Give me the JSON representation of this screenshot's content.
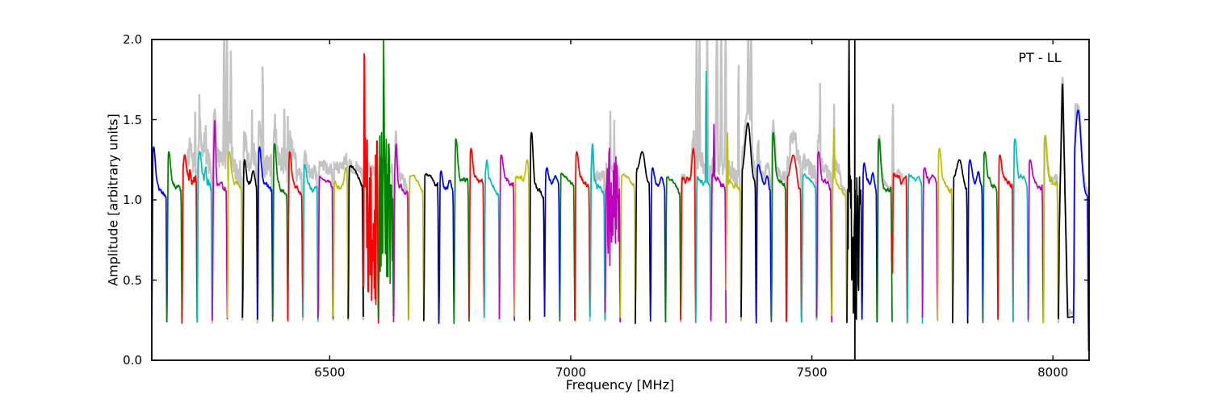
{
  "figure": {
    "annotation": "PT - LL",
    "background": "#ffffff",
    "frame_color": "#000000"
  },
  "chart_data": {
    "type": "line",
    "title": "",
    "xlabel": "Frequency [MHz]",
    "ylabel": "Amplitude [arbitrary units]",
    "annotation": "PT - LL",
    "xlim": [
      6131,
      8075
    ],
    "ylim": [
      0.0,
      2.0
    ],
    "xticks": [
      6500,
      7000,
      7500,
      8000
    ],
    "yticks": [
      0.0,
      0.5,
      1.0,
      1.5,
      2.0
    ],
    "grid": false,
    "legend": "none",
    "description": "Bandpass amplitude spectra of 62 contiguous sub-bands (~31.3 MHz each) from 6131 to 8074 MHz; colors cycle blue,green,red,cyan,magenta,yellow,black; light-gray underlying curves show the same spectra before flagging with strong RFI spikes (clipped at 2.0); typical bandpass plateau ~1.15, band-edge minima ~0.25",
    "palette": {
      "b": "#0000ff",
      "g": "#008000",
      "r": "#ff0000",
      "c": "#00bfbf",
      "m": "#bf00bf",
      "y": "#bfbf00",
      "k": "#000000",
      "gray": "#c4c4c4"
    },
    "band_start": 6131,
    "band_width": 31.34,
    "plateau": 1.15,
    "edge_min": 0.25,
    "subbands": [
      {
        "c": "b",
        "p": 1.33,
        "s": "L"
      },
      {
        "c": "g",
        "p": 1.3,
        "s": "L"
      },
      {
        "c": "r",
        "p": 1.28,
        "s": "J"
      },
      {
        "c": "c",
        "p": 1.3,
        "s": "J"
      },
      {
        "c": "m",
        "p": 1.5,
        "s": "P"
      },
      {
        "c": "y",
        "p": 1.3,
        "s": "L"
      },
      {
        "c": "k",
        "p": 1.25,
        "s": "D"
      },
      {
        "c": "b",
        "p": 1.33,
        "s": "L"
      },
      {
        "c": "g",
        "p": 1.35,
        "s": "L"
      },
      {
        "c": "r",
        "p": 1.3,
        "s": "L"
      },
      {
        "c": "c",
        "p": 1.22,
        "s": "L"
      },
      {
        "c": "m",
        "p": 1.18,
        "s": "F"
      },
      {
        "c": "y",
        "p": 1.2,
        "s": "R"
      },
      {
        "c": "k",
        "p": 1.25,
        "s": "F"
      },
      {
        "c": "r",
        "p": 1.4,
        "s": "M",
        "mess": [
          0.25,
          1.4
        ],
        "spike": [
          6572,
          2.05,
          1.1
        ]
      },
      {
        "c": "g",
        "p": 1.45,
        "s": "M",
        "mess": [
          0.3,
          1.45
        ],
        "spike": [
          6612,
          2.05,
          1.1
        ]
      },
      {
        "c": "m",
        "p": 1.35,
        "s": "P"
      },
      {
        "c": "y",
        "p": 1.18,
        "s": "F"
      },
      {
        "c": "k",
        "p": 1.18,
        "s": "F"
      },
      {
        "c": "b",
        "p": 1.18,
        "s": "D"
      },
      {
        "c": "g",
        "p": 1.38,
        "s": "L"
      },
      {
        "c": "r",
        "p": 1.32,
        "s": "L"
      },
      {
        "c": "c",
        "p": 1.25,
        "s": "P"
      },
      {
        "c": "m",
        "p": 1.28,
        "s": "L"
      },
      {
        "c": "y",
        "p": 1.25,
        "s": "R"
      },
      {
        "c": "k",
        "p": 1.42,
        "s": "L"
      },
      {
        "c": "b",
        "p": 1.2,
        "s": "D"
      },
      {
        "c": "g",
        "p": 1.17,
        "s": "F"
      },
      {
        "c": "r",
        "p": 1.3,
        "s": "L"
      },
      {
        "c": "c",
        "p": 1.35,
        "s": "P"
      },
      {
        "c": "m",
        "p": 1.35,
        "s": "M",
        "mess": [
          0.3,
          1.35
        ],
        "spike": [
          7068,
          2.05,
          1.1
        ]
      },
      {
        "c": "y",
        "p": 1.2,
        "s": "F"
      },
      {
        "c": "k",
        "p": 1.3,
        "s": "C"
      },
      {
        "c": "b",
        "p": 1.2,
        "s": "D"
      },
      {
        "c": "g",
        "p": 1.17,
        "s": "F"
      },
      {
        "c": "r",
        "p": 1.32,
        "s": "R"
      },
      {
        "c": "c",
        "p": 1.15,
        "s": "S",
        "spike": [
          7281,
          1.81,
          1.6
        ]
      },
      {
        "c": "m",
        "p": 1.25,
        "s": "S",
        "spike": [
          7297,
          1.47,
          1.6
        ]
      },
      {
        "c": "y",
        "p": 1.2,
        "s": "S",
        "spike": [
          7325,
          1.42,
          1.6
        ]
      },
      {
        "c": "k",
        "p": 1.48,
        "s": "C"
      },
      {
        "c": "b",
        "p": 1.22,
        "s": "D"
      },
      {
        "c": "g",
        "p": 1.42,
        "s": "L"
      },
      {
        "c": "r",
        "p": 1.28,
        "s": "C"
      },
      {
        "c": "c",
        "p": 1.15,
        "s": "F"
      },
      {
        "c": "m",
        "p": 1.3,
        "s": "L"
      },
      {
        "c": "y",
        "p": 1.25,
        "s": "S",
        "spike": [
          7546,
          1.45,
          1.6
        ]
      },
      {
        "c": "k",
        "p": 1.2,
        "s": "M",
        "mess": [
          0.12,
          1.2
        ],
        "spike": [
          7577,
          2.05,
          1.0
        ],
        "vline": 7589
      },
      {
        "c": "b",
        "p": 1.23,
        "s": "D"
      },
      {
        "c": "g",
        "p": 1.38,
        "s": "L"
      },
      {
        "c": "r",
        "p": 1.1,
        "s": "S",
        "spike": [
          7664,
          1.55,
          2.0
        ]
      },
      {
        "c": "c",
        "p": 1.15,
        "s": "F"
      },
      {
        "c": "m",
        "p": 1.2,
        "s": "D"
      },
      {
        "c": "y",
        "p": 1.32,
        "s": "L"
      },
      {
        "c": "k",
        "p": 1.25,
        "s": "C"
      },
      {
        "c": "b",
        "p": 1.25,
        "s": "D"
      },
      {
        "c": "g",
        "p": 1.3,
        "s": "L"
      },
      {
        "c": "r",
        "p": 1.28,
        "s": "L"
      },
      {
        "c": "c",
        "p": 1.38,
        "s": "L"
      },
      {
        "c": "m",
        "p": 1.25,
        "s": "L"
      },
      {
        "c": "y",
        "p": 1.4,
        "s": "L"
      },
      {
        "c": "k",
        "p": 1.77,
        "s": "T"
      },
      {
        "c": "b",
        "p": 1.56,
        "s": "X"
      }
    ],
    "gray_spikes": [
      [
        6221,
        1.55,
        1.2
      ],
      [
        6230,
        1.67,
        1.2
      ],
      [
        6281,
        2.05,
        1.6
      ],
      [
        6287,
        2.05,
        1.4
      ],
      [
        6295,
        1.93,
        1.4
      ],
      [
        6339,
        1.56,
        1.2
      ],
      [
        6361,
        1.85,
        1.3
      ],
      [
        6406,
        1.6,
        1.2
      ],
      [
        6413,
        1.52,
        1.0
      ],
      [
        7082,
        1.55,
        1.2
      ],
      [
        7090,
        1.5,
        1.0
      ],
      [
        7261,
        2.05,
        1.6
      ],
      [
        7267,
        2.05,
        1.2
      ],
      [
        7283,
        2.05,
        1.6
      ],
      [
        7303,
        2.05,
        2.2
      ],
      [
        7312,
        2.05,
        1.6
      ],
      [
        7321,
        2.05,
        1.6
      ],
      [
        7348,
        1.92,
        1.0
      ],
      [
        7368,
        2.05,
        2.0
      ],
      [
        7374,
        2.05,
        1.8
      ],
      [
        7517,
        1.74,
        1.1
      ],
      [
        7546,
        1.6,
        1.1
      ],
      [
        7668,
        1.62,
        1.3
      ],
      [
        8019,
        1.8,
        1.2
      ],
      [
        8047,
        1.63,
        1.2
      ]
    ],
    "gray_excess_regions": [
      [
        6205,
        6430,
        0.2
      ],
      [
        6430,
        6545,
        0.1
      ],
      [
        6555,
        6660,
        0.1
      ],
      [
        7050,
        7100,
        0.08
      ],
      [
        7250,
        7390,
        0.15
      ],
      [
        7390,
        7478,
        0.1
      ],
      [
        7455,
        7560,
        0.12
      ],
      [
        7640,
        7690,
        0.04
      ],
      [
        7990,
        8074,
        0.05
      ]
    ]
  }
}
